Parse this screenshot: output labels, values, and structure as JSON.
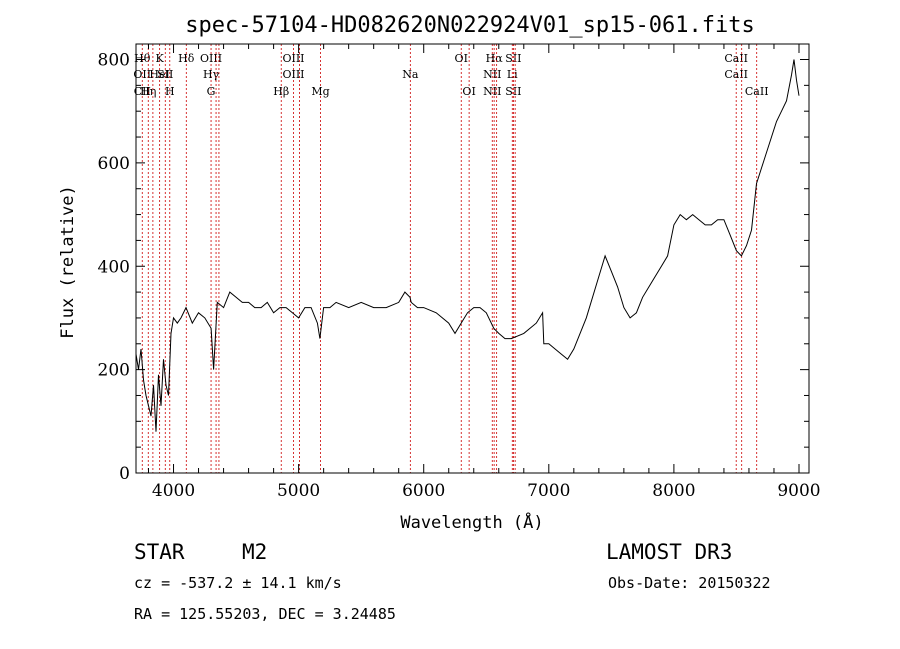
{
  "chart_data": {
    "type": "line",
    "title": "spec-57104-HD082620N022924V01_sp15-061.fits",
    "xlabel": "Wavelength (Å)",
    "ylabel": "Flux (relative)",
    "xlim": [
      3700,
      9080
    ],
    "ylim": [
      0,
      830
    ],
    "xticks": [
      4000,
      5000,
      6000,
      7000,
      8000,
      9000
    ],
    "yticks": [
      0,
      200,
      400,
      600,
      800
    ],
    "grid": false,
    "series": [
      {
        "x": [
          3700,
          3720,
          3740,
          3760,
          3780,
          3800,
          3820,
          3840,
          3860,
          3880,
          3900,
          3920,
          3940,
          3960,
          3980,
          4000,
          4030,
          4060,
          4100,
          4150,
          4200,
          4250,
          4300,
          4320,
          4350,
          4400,
          4450,
          4500,
          4550,
          4600,
          4650,
          4700,
          4750,
          4800,
          4850,
          4900,
          4950,
          5000,
          5050,
          5100,
          5150,
          5170,
          5200,
          5250,
          5300,
          5400,
          5500,
          5600,
          5700,
          5800,
          5850,
          5890,
          5900,
          5950,
          6000,
          6100,
          6200,
          6250,
          6300,
          6350,
          6400,
          6450,
          6500,
          6560,
          6600,
          6650,
          6700,
          6800,
          6900,
          6950,
          6960,
          7000,
          7050,
          7100,
          7150,
          7200,
          7300,
          7400,
          7450,
          7500,
          7550,
          7600,
          7650,
          7700,
          7750,
          7800,
          7850,
          7900,
          7950,
          8000,
          8050,
          8100,
          8150,
          8200,
          8250,
          8300,
          8350,
          8400,
          8450,
          8500,
          8540,
          8580,
          8620,
          8660,
          8700,
          8740,
          8780,
          8820,
          8860,
          8900,
          8940,
          8960,
          8980,
          9000
        ],
        "y": [
          230,
          200,
          240,
          180,
          150,
          130,
          110,
          170,
          80,
          190,
          130,
          220,
          170,
          150,
          270,
          300,
          290,
          300,
          320,
          290,
          310,
          300,
          280,
          200,
          330,
          320,
          350,
          340,
          330,
          330,
          320,
          320,
          330,
          310,
          320,
          320,
          310,
          300,
          320,
          320,
          290,
          260,
          320,
          320,
          330,
          320,
          330,
          320,
          320,
          330,
          350,
          340,
          330,
          320,
          320,
          310,
          290,
          270,
          290,
          310,
          320,
          320,
          310,
          280,
          270,
          260,
          260,
          270,
          290,
          310,
          250,
          250,
          240,
          230,
          220,
          240,
          300,
          380,
          420,
          390,
          360,
          320,
          300,
          310,
          340,
          360,
          380,
          400,
          420,
          480,
          500,
          490,
          500,
          490,
          480,
          480,
          490,
          490,
          460,
          430,
          420,
          440,
          470,
          560,
          590,
          620,
          650,
          680,
          700,
          720,
          770,
          800,
          760,
          730
        ]
      }
    ],
    "line_marks": [
      {
        "wl": 3750,
        "labels": [
          "Hθ",
          "OII",
          "CII"
        ]
      },
      {
        "wl": 3798,
        "labels": [
          "",
          "",
          "Hη"
        ]
      },
      {
        "wl": 3835,
        "labels": [
          "",
          "",
          ""
        ]
      },
      {
        "wl": 3889,
        "labels": [
          "K",
          "HeI",
          ""
        ]
      },
      {
        "wl": 3934,
        "labels": [
          "",
          "SII",
          ""
        ]
      },
      {
        "wl": 3970,
        "labels": [
          "",
          "",
          "H"
        ]
      },
      {
        "wl": 4102,
        "labels": [
          "Hδ",
          "",
          ""
        ]
      },
      {
        "wl": 4300,
        "labels": [
          "OIII",
          "Hγ",
          "G"
        ]
      },
      {
        "wl": 4340,
        "labels": [
          "",
          "",
          ""
        ]
      },
      {
        "wl": 4363,
        "labels": [
          "",
          "",
          ""
        ]
      },
      {
        "wl": 4861,
        "labels": [
          "",
          "",
          "Hβ"
        ]
      },
      {
        "wl": 4959,
        "labels": [
          "OIII",
          "OIII",
          ""
        ]
      },
      {
        "wl": 5007,
        "labels": [
          "",
          "",
          ""
        ]
      },
      {
        "wl": 5175,
        "labels": [
          "",
          "",
          "Mg"
        ]
      },
      {
        "wl": 5893,
        "labels": [
          "",
          "Na",
          ""
        ]
      },
      {
        "wl": 6300,
        "labels": [
          "OI",
          "",
          ""
        ]
      },
      {
        "wl": 6363,
        "labels": [
          "",
          "",
          "OI"
        ]
      },
      {
        "wl": 6548,
        "labels": [
          "",
          "NII",
          "NII"
        ]
      },
      {
        "wl": 6563,
        "labels": [
          "Hα",
          "",
          ""
        ]
      },
      {
        "wl": 6583,
        "labels": [
          "",
          "",
          ""
        ]
      },
      {
        "wl": 6708,
        "labels": [
          "",
          "Li",
          ""
        ]
      },
      {
        "wl": 6717,
        "labels": [
          "SII",
          "",
          "SII"
        ]
      },
      {
        "wl": 6731,
        "labels": [
          "",
          "",
          ""
        ]
      },
      {
        "wl": 8498,
        "labels": [
          "CaII",
          "CaII",
          ""
        ]
      },
      {
        "wl": 8542,
        "labels": [
          "",
          "",
          ""
        ]
      },
      {
        "wl": 8662,
        "labels": [
          "",
          "",
          "CaII"
        ]
      }
    ]
  },
  "info": {
    "obj_class": "STAR",
    "subclass": "M2",
    "survey": "LAMOST DR3",
    "cz": "cz = -537.2 ± 14.1 km/s",
    "obs_date": "Obs-Date: 20150322",
    "radec": "RA = 125.55203, DEC =    3.24485"
  },
  "colors": {
    "spectrum": "#000000",
    "line_marker": "#cc0000",
    "axes": "#000000"
  }
}
